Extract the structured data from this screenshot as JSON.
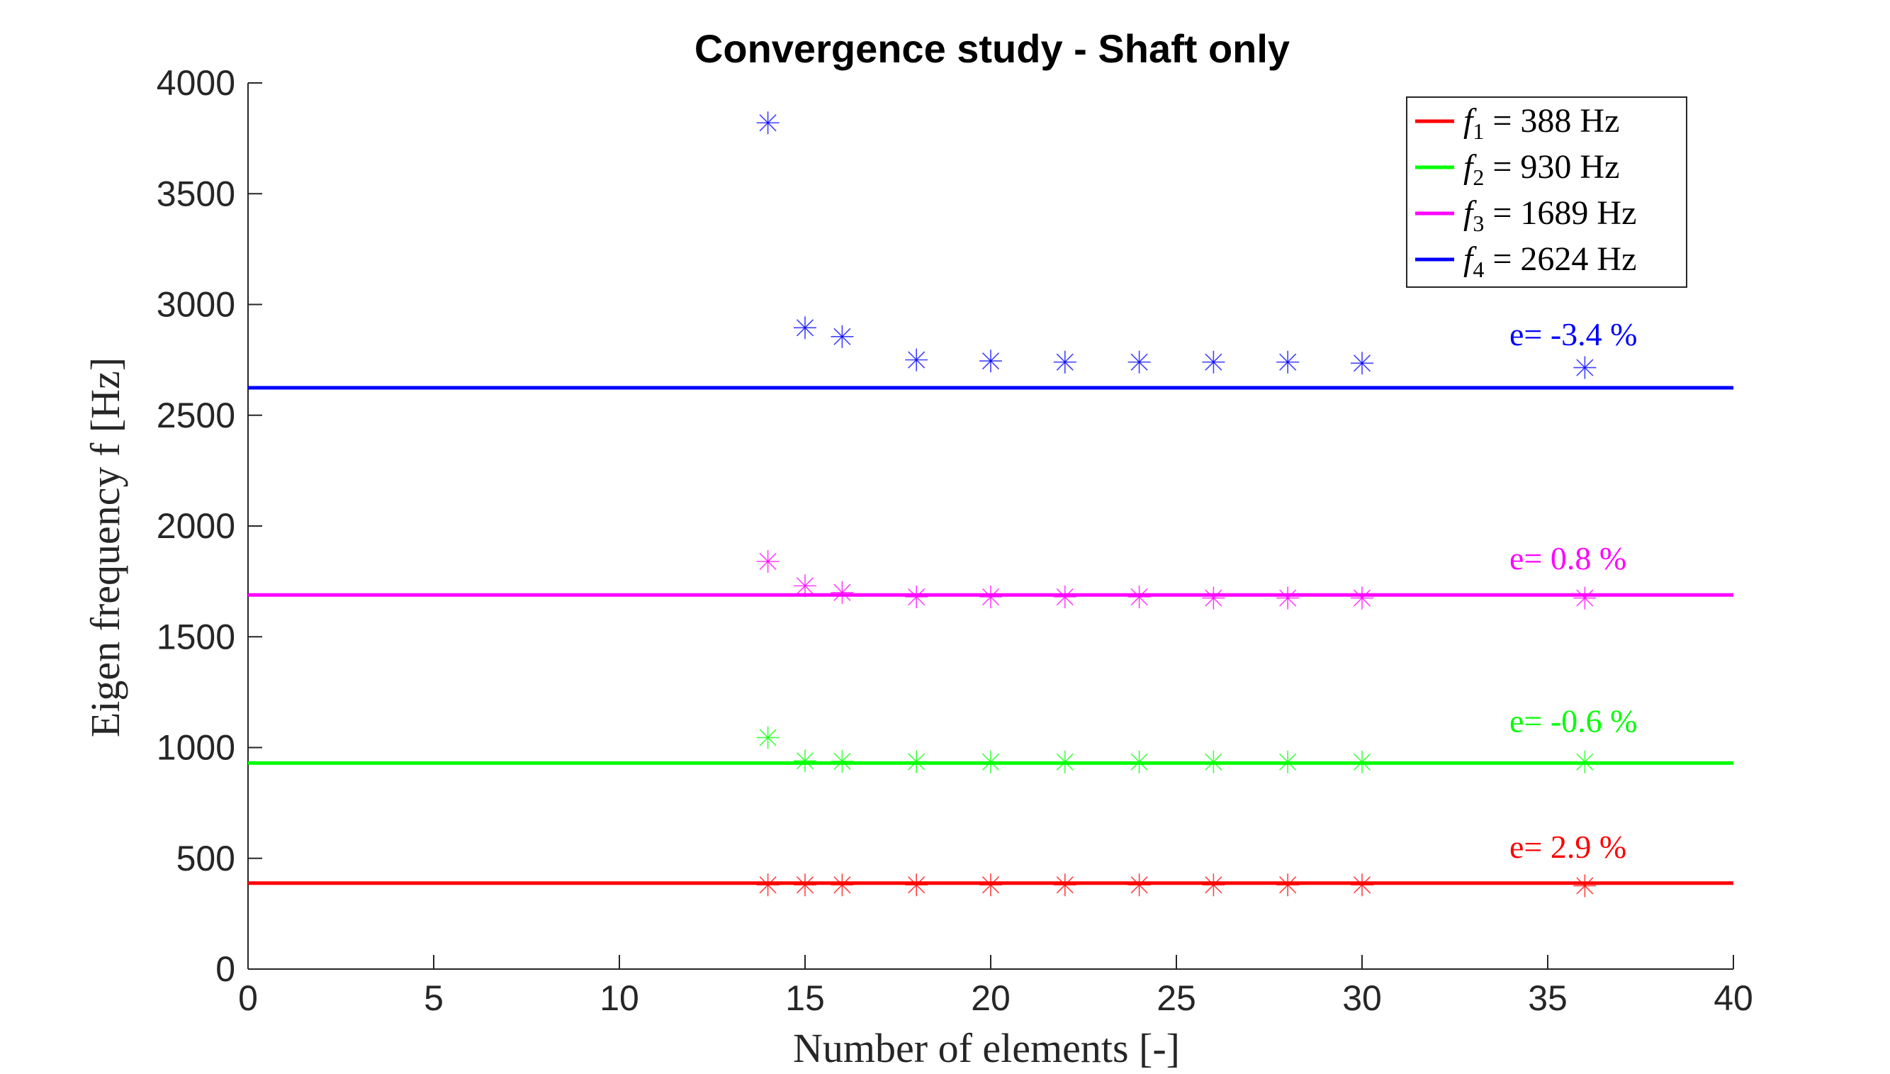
{
  "chart_data": {
    "type": "scatter",
    "title": "Convergence study - Shaft only",
    "xlabel": "Number of elements [-]",
    "ylabel": "Eigen frequency f [Hz]",
    "xlim": [
      0,
      40
    ],
    "ylim": [
      0,
      4000
    ],
    "xticks": [
      0,
      5,
      10,
      15,
      20,
      25,
      30,
      35,
      40
    ],
    "yticks": [
      0,
      500,
      1000,
      1500,
      2000,
      2500,
      3000,
      3500,
      4000
    ],
    "grid": false,
    "legend_position": "top-right",
    "x": [
      14,
      15,
      16,
      18,
      20,
      22,
      24,
      26,
      28,
      30,
      36
    ],
    "series": [
      {
        "legend_var": "f",
        "legend_sub": "1",
        "legend_rest": "= 388 Hz",
        "reference": 388,
        "color": "#ff0000",
        "values": [
          380,
          380,
          380,
          380,
          380,
          380,
          380,
          380,
          380,
          380,
          376
        ],
        "annotation": "e= 2.9 %"
      },
      {
        "legend_var": "f",
        "legend_sub": "2",
        "legend_rest": "= 930 Hz",
        "reference": 930,
        "color": "#00ff00",
        "values": [
          1045,
          940,
          938,
          936,
          935,
          935,
          935,
          935,
          935,
          935,
          935
        ],
        "annotation": "e= -0.6 %"
      },
      {
        "legend_var": "f",
        "legend_sub": "3",
        "legend_rest": "= 1689 Hz",
        "reference": 1689,
        "color": "#ff00ff",
        "values": [
          1840,
          1730,
          1700,
          1680,
          1680,
          1680,
          1680,
          1675,
          1675,
          1675,
          1675
        ],
        "annotation": "e= 0.8 %"
      },
      {
        "legend_var": "f",
        "legend_sub": "4",
        "legend_rest": "= 2624 Hz",
        "reference": 2624,
        "color": "#0000ff",
        "values": [
          3820,
          2895,
          2855,
          2750,
          2745,
          2740,
          2740,
          2740,
          2740,
          2735,
          2715
        ],
        "annotation": "e= -3.4 %"
      }
    ]
  }
}
